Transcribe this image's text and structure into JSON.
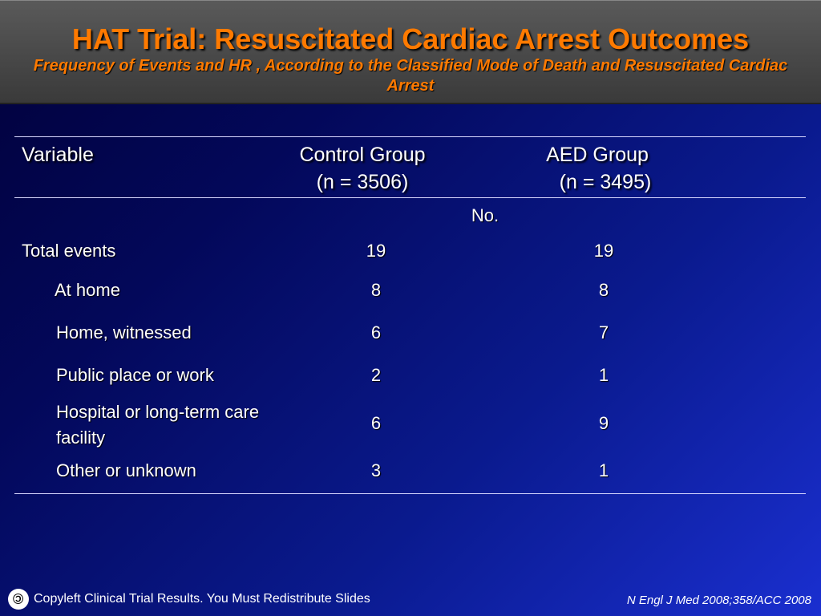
{
  "slide": {
    "title": "HAT Trial: Resuscitated Cardiac Arrest Outcomes",
    "subtitle": "Frequency of Events and HR , According to the Classified Mode of Death and Resuscitated Cardiac Arrest"
  },
  "table": {
    "headers": {
      "variable": "Variable",
      "control_line1": "Control Group",
      "control_line2": "(n = 3506)",
      "aed_line1": "AED Group",
      "aed_line2": "(n = 3495)"
    },
    "unit_label": "No.",
    "rows": [
      {
        "label": "Total events",
        "control": "19",
        "aed": "19"
      },
      {
        "label": "At home",
        "control": "8",
        "aed": "8"
      },
      {
        "label": "Home, witnessed",
        "control": "6",
        "aed": "7"
      },
      {
        "label": "Public place or work",
        "control": "2",
        "aed": "1"
      },
      {
        "label": "Hospital or long-term care facility",
        "control": "6",
        "aed": "9"
      },
      {
        "label": "Other or unknown",
        "control": "3",
        "aed": "1"
      }
    ]
  },
  "footer": {
    "copyleft": "Copyleft Clinical Trial Results. You Must Redistribute Slides",
    "citation": "N Engl J Med 2008;358/ACC 2008",
    "icon": "copyleft-icon"
  },
  "colors": {
    "title": "#ff7a00",
    "background_dark": "#01013a",
    "background_light": "#1a2fd0",
    "header_bar": "#4a4a4a"
  }
}
